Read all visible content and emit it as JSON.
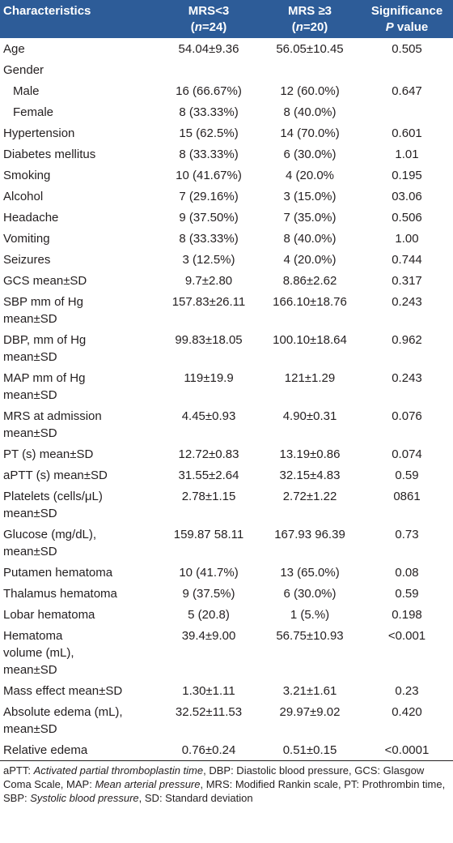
{
  "header": [
    {
      "lines": [
        [
          {
            "text": "Characteristics"
          }
        ]
      ]
    },
    {
      "lines": [
        [
          {
            "text": "MRS<3"
          }
        ],
        [
          {
            "text": "("
          },
          {
            "text": "n",
            "italic": true
          },
          {
            "text": "=24)"
          }
        ]
      ]
    },
    {
      "lines": [
        [
          {
            "text": "MRS ≥3"
          }
        ],
        [
          {
            "text": "("
          },
          {
            "text": "n",
            "italic": true
          },
          {
            "text": "=20)"
          }
        ]
      ]
    },
    {
      "lines": [
        [
          {
            "text": "Significance"
          }
        ],
        [
          {
            "text": "P",
            "italic": true
          },
          {
            "text": " value"
          }
        ]
      ]
    }
  ],
  "rows": [
    {
      "label": [
        "Age"
      ],
      "values": [
        "54.04±9.36",
        "56.05±10.45",
        "0.505"
      ]
    },
    {
      "label": [
        "Gender"
      ]
    },
    {
      "label": [
        "Male"
      ],
      "indent": true,
      "values": [
        "16 (66.67%)",
        "12 (60.0%)",
        "0.647"
      ]
    },
    {
      "label": [
        "Female"
      ],
      "indent": true,
      "values": [
        "8 (33.33%)",
        "8 (40.0%)"
      ]
    },
    {
      "label": [
        "Hypertension"
      ],
      "values": [
        "15 (62.5%)",
        "14 (70.0%)",
        "0.601"
      ]
    },
    {
      "label": [
        "Diabetes mellitus"
      ],
      "values": [
        "8 (33.33%)",
        "6 (30.0%)",
        "1.01"
      ]
    },
    {
      "label": [
        "Smoking"
      ],
      "values": [
        "10 (41.67%)",
        "4 (20.0%",
        "0.195"
      ]
    },
    {
      "label": [
        "Alcohol"
      ],
      "values": [
        "7 (29.16%)",
        "3 (15.0%)",
        "03.06"
      ]
    },
    {
      "label": [
        "Headache"
      ],
      "values": [
        "9 (37.50%)",
        "7 (35.0%)",
        "0.506"
      ]
    },
    {
      "label": [
        "Vomiting"
      ],
      "values": [
        "8 (33.33%)",
        "8 (40.0%)",
        "1.00"
      ]
    },
    {
      "label": [
        "Seizures"
      ],
      "values": [
        "3 (12.5%)",
        "4 (20.0%)",
        "0.744"
      ]
    },
    {
      "label": [
        "GCS mean±SD"
      ],
      "values": [
        "9.7±2.80",
        "8.86±2.62",
        "0.317"
      ]
    },
    {
      "label": [
        "SBP mm of Hg",
        "mean±SD"
      ],
      "values": [
        "157.83±26.11",
        "166.10±18.76",
        "0.243"
      ]
    },
    {
      "label": [
        "DBP, mm of Hg",
        "mean±SD"
      ],
      "values": [
        "99.83±18.05",
        "100.10±18.64",
        "0.962"
      ]
    },
    {
      "label": [
        "MAP mm of Hg",
        "mean±SD"
      ],
      "values": [
        "119±19.9",
        "121±1.29",
        "0.243"
      ]
    },
    {
      "label": [
        "MRS at admission",
        "mean±SD"
      ],
      "values": [
        "4.45±0.93",
        "4.90±0.31",
        "0.076"
      ]
    },
    {
      "label": [
        "PT (s) mean±SD"
      ],
      "values": [
        "12.72±0.83",
        "13.19±0.86",
        "0.074"
      ]
    },
    {
      "label": [
        "aPTT (s) mean±SD"
      ],
      "values": [
        "31.55±2.64",
        "32.15±4.83",
        "0.59"
      ]
    },
    {
      "label": [
        "Platelets (cells/μL)",
        "mean±SD"
      ],
      "values": [
        "2.78±1.15",
        "2.72±1.22",
        "0861"
      ]
    },
    {
      "label": [
        "Glucose (mg/dL),",
        "mean±SD"
      ],
      "values": [
        "159.87 58.11",
        "167.93 96.39",
        "0.73"
      ]
    },
    {
      "label": [
        "Putamen hematoma"
      ],
      "values": [
        "10 (41.7%)",
        "13 (65.0%)",
        "0.08"
      ]
    },
    {
      "label": [
        "Thalamus hematoma"
      ],
      "values": [
        "9 (37.5%)",
        "6 (30.0%)",
        "0.59"
      ]
    },
    {
      "label": [
        "Lobar hematoma"
      ],
      "values": [
        "5 (20.8)",
        "1 (5.%)",
        "0.198"
      ]
    },
    {
      "label": [
        "Hematoma",
        "volume (mL),",
        "mean±SD"
      ],
      "values": [
        "39.4±9.00",
        "56.75±10.93",
        "<0.001"
      ]
    },
    {
      "label": [
        "Mass effect mean±SD"
      ],
      "values": [
        "1.30±1.11",
        "3.21±1.61",
        "0.23"
      ]
    },
    {
      "label": [
        "Absolute edema (mL),",
        "mean±SD"
      ],
      "values": [
        "32.52±11.53",
        "29.97±9.02",
        "0.420"
      ]
    },
    {
      "label": [
        "Relative edema"
      ],
      "values": [
        "0.76±0.24",
        "0.51±0.15",
        "<0.0001"
      ]
    }
  ],
  "footnote": [
    {
      "text": "aPTT: "
    },
    {
      "text": "Activated partial thromboplastin time",
      "italic": true
    },
    {
      "text": ", DBP: Diastolic blood pressure, GCS: Glasgow Coma Scale, MAP: "
    },
    {
      "text": "Mean arterial pressure",
      "italic": true
    },
    {
      "text": ", MRS: Modified Rankin scale, PT: Prothrombin time, SBP: "
    },
    {
      "text": "Systolic blood pressure",
      "italic": true
    },
    {
      "text": ", SD: Standard deviation"
    }
  ]
}
